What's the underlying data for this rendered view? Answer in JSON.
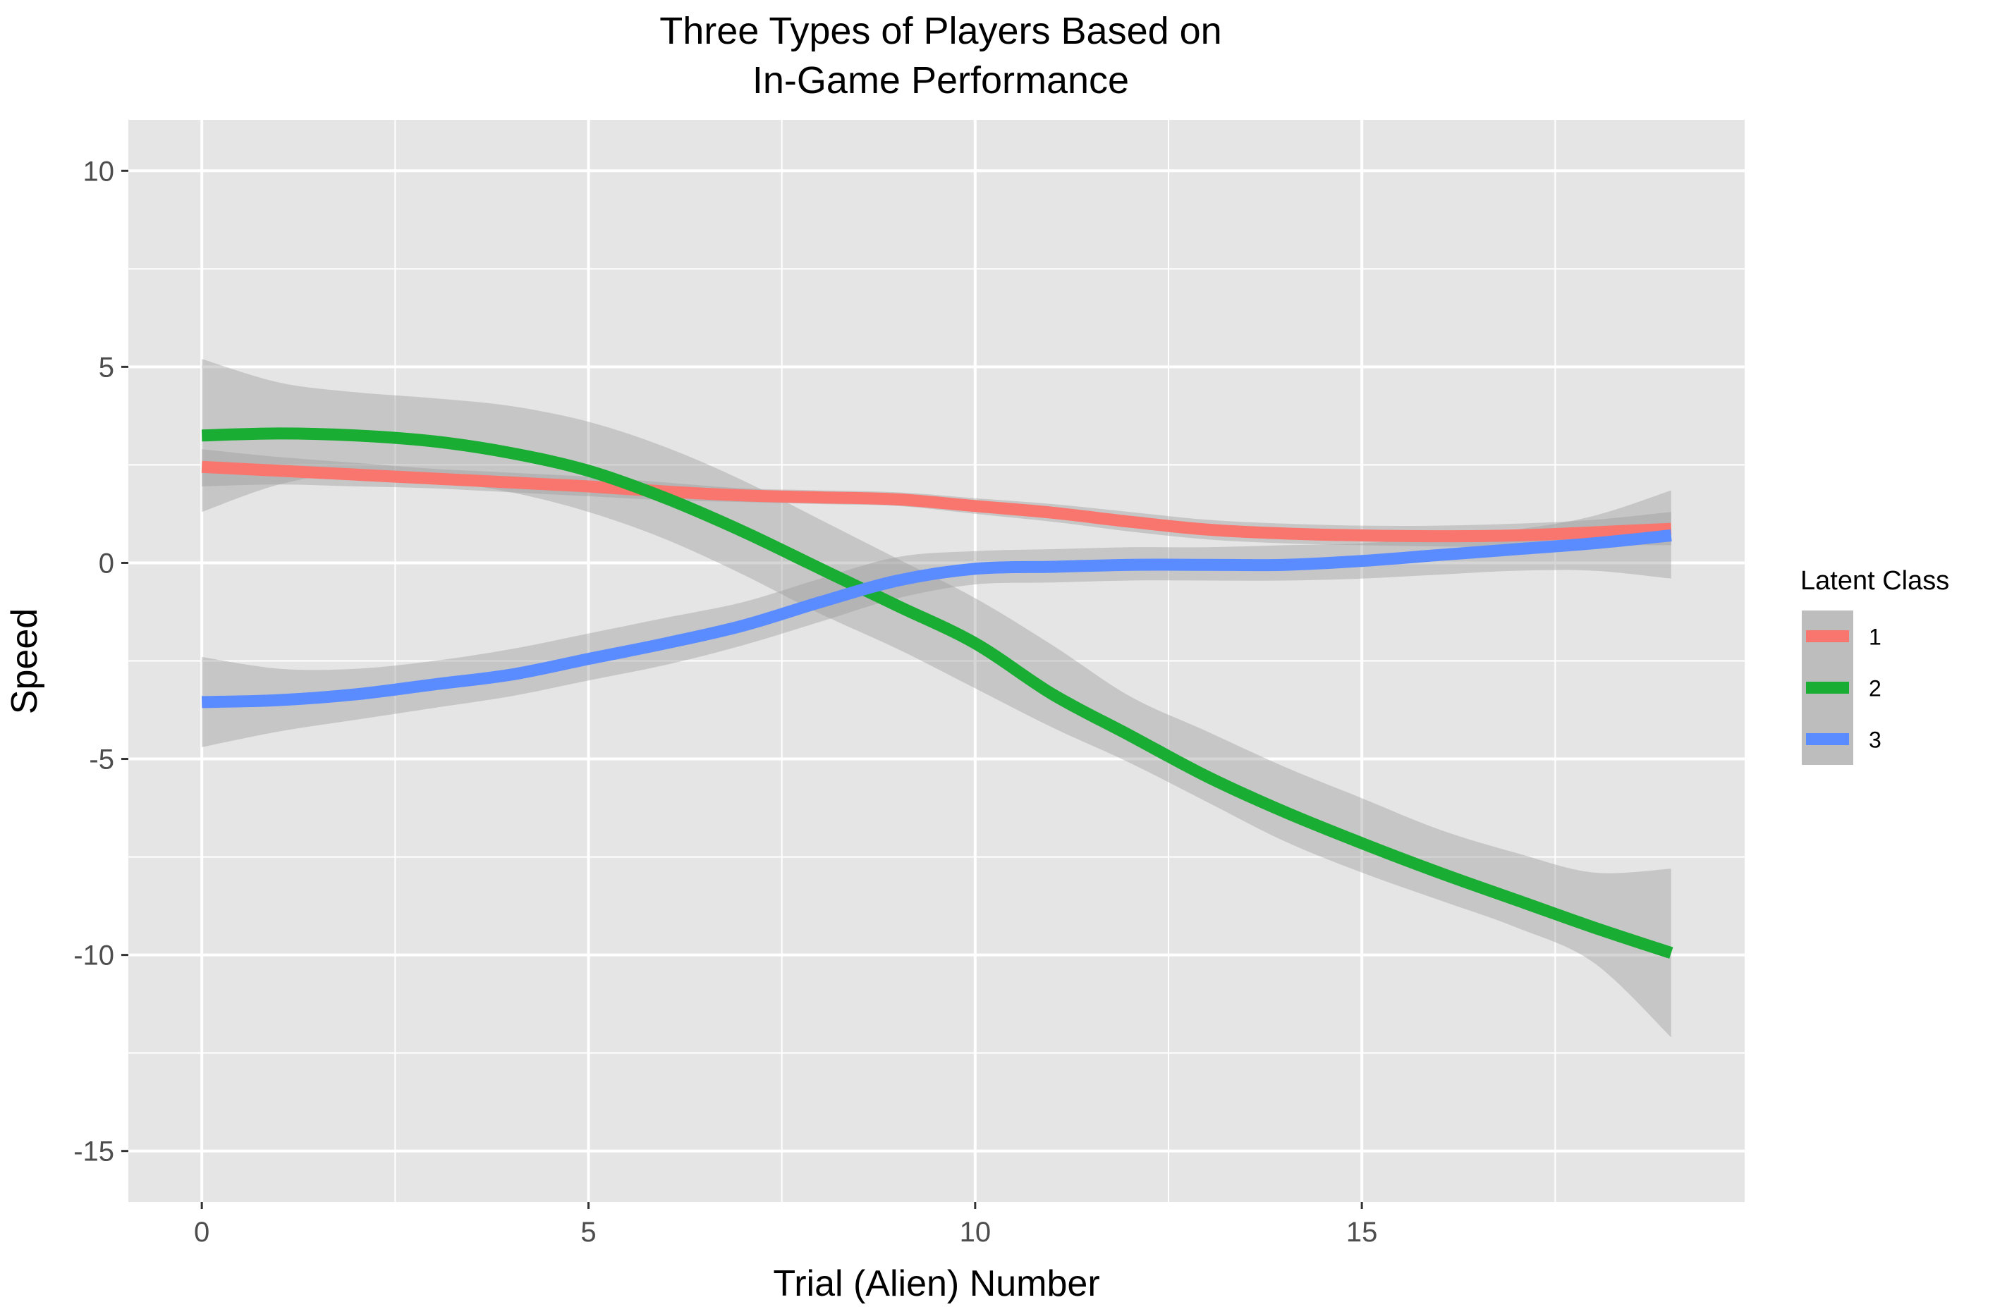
{
  "chart_data": {
    "type": "line",
    "title_line1": "Three Types of Players Based on",
    "title_line2": "In-Game Performance",
    "xlabel": "Trial (Alien) Number",
    "ylabel": "Speed",
    "xlim": [
      -0.95,
      19.95
    ],
    "ylim": [
      -16.3,
      11.3
    ],
    "x_ticks": [
      0,
      5,
      10,
      15
    ],
    "x_tick_labels": [
      "0",
      "5",
      "10",
      "15"
    ],
    "y_ticks": [
      10,
      5,
      0,
      -5,
      -10,
      -15
    ],
    "y_tick_labels": [
      "10",
      "5",
      "0",
      "-5",
      "-10",
      "-15"
    ],
    "grid": true,
    "legend": {
      "title": "Latent Class",
      "position": "right"
    },
    "colors": {
      "panel": "#e5e5e5",
      "band": "#bdbdbd",
      "grid": "#ffffff"
    },
    "x": [
      0,
      1,
      2,
      3,
      4,
      5,
      6,
      7,
      8,
      9,
      10,
      11,
      12,
      13,
      14,
      15,
      16,
      17,
      18,
      19
    ],
    "series": [
      {
        "name": "1",
        "color": "#f8766d",
        "values": [
          2.45,
          2.35,
          2.25,
          2.15,
          2.05,
          1.95,
          1.82,
          1.72,
          1.67,
          1.62,
          1.45,
          1.28,
          1.05,
          0.85,
          0.75,
          0.7,
          0.68,
          0.7,
          0.78,
          0.87
        ],
        "lower": [
          1.95,
          2.0,
          1.95,
          1.9,
          1.8,
          1.7,
          1.6,
          1.55,
          1.5,
          1.45,
          1.25,
          1.05,
          0.8,
          0.6,
          0.5,
          0.45,
          0.42,
          0.4,
          0.45,
          0.45
        ],
        "upper": [
          2.9,
          2.7,
          2.55,
          2.4,
          2.3,
          2.2,
          2.05,
          1.9,
          1.85,
          1.8,
          1.65,
          1.5,
          1.3,
          1.1,
          1.0,
          0.95,
          0.95,
          1.0,
          1.1,
          1.3
        ]
      },
      {
        "name": "2",
        "color": "#19ad33",
        "values": [
          3.25,
          3.3,
          3.25,
          3.1,
          2.8,
          2.35,
          1.65,
          0.8,
          -0.15,
          -1.1,
          -2.05,
          -3.35,
          -4.4,
          -5.45,
          -6.35,
          -7.15,
          -7.9,
          -8.6,
          -9.3,
          -9.95
        ],
        "lower": [
          1.3,
          2.0,
          2.3,
          2.1,
          1.8,
          1.3,
          0.6,
          -0.3,
          -1.3,
          -2.2,
          -3.2,
          -4.2,
          -5.1,
          -6.1,
          -7.1,
          -7.9,
          -8.6,
          -9.3,
          -10.2,
          -12.1
        ],
        "upper": [
          5.2,
          4.6,
          4.35,
          4.2,
          4.0,
          3.6,
          2.95,
          2.1,
          1.1,
          0.1,
          -0.9,
          -2.1,
          -3.4,
          -4.3,
          -5.2,
          -6.0,
          -6.8,
          -7.4,
          -7.9,
          -7.8
        ]
      },
      {
        "name": "3",
        "color": "#5b8cff",
        "values": [
          -3.55,
          -3.5,
          -3.35,
          -3.1,
          -2.85,
          -2.45,
          -2.05,
          -1.6,
          -1.0,
          -0.45,
          -0.15,
          -0.1,
          -0.05,
          -0.05,
          -0.05,
          0.05,
          0.2,
          0.35,
          0.5,
          0.7
        ],
        "lower": [
          -4.7,
          -4.3,
          -4.0,
          -3.7,
          -3.4,
          -3.0,
          -2.6,
          -2.1,
          -1.5,
          -0.9,
          -0.55,
          -0.5,
          -0.45,
          -0.45,
          -0.45,
          -0.4,
          -0.3,
          -0.2,
          -0.2,
          -0.4
        ],
        "upper": [
          -2.4,
          -2.7,
          -2.7,
          -2.5,
          -2.2,
          -1.8,
          -1.4,
          -1.0,
          -0.4,
          0.15,
          0.3,
          0.35,
          0.4,
          0.4,
          0.45,
          0.5,
          0.65,
          0.85,
          1.2,
          1.85
        ]
      }
    ]
  }
}
